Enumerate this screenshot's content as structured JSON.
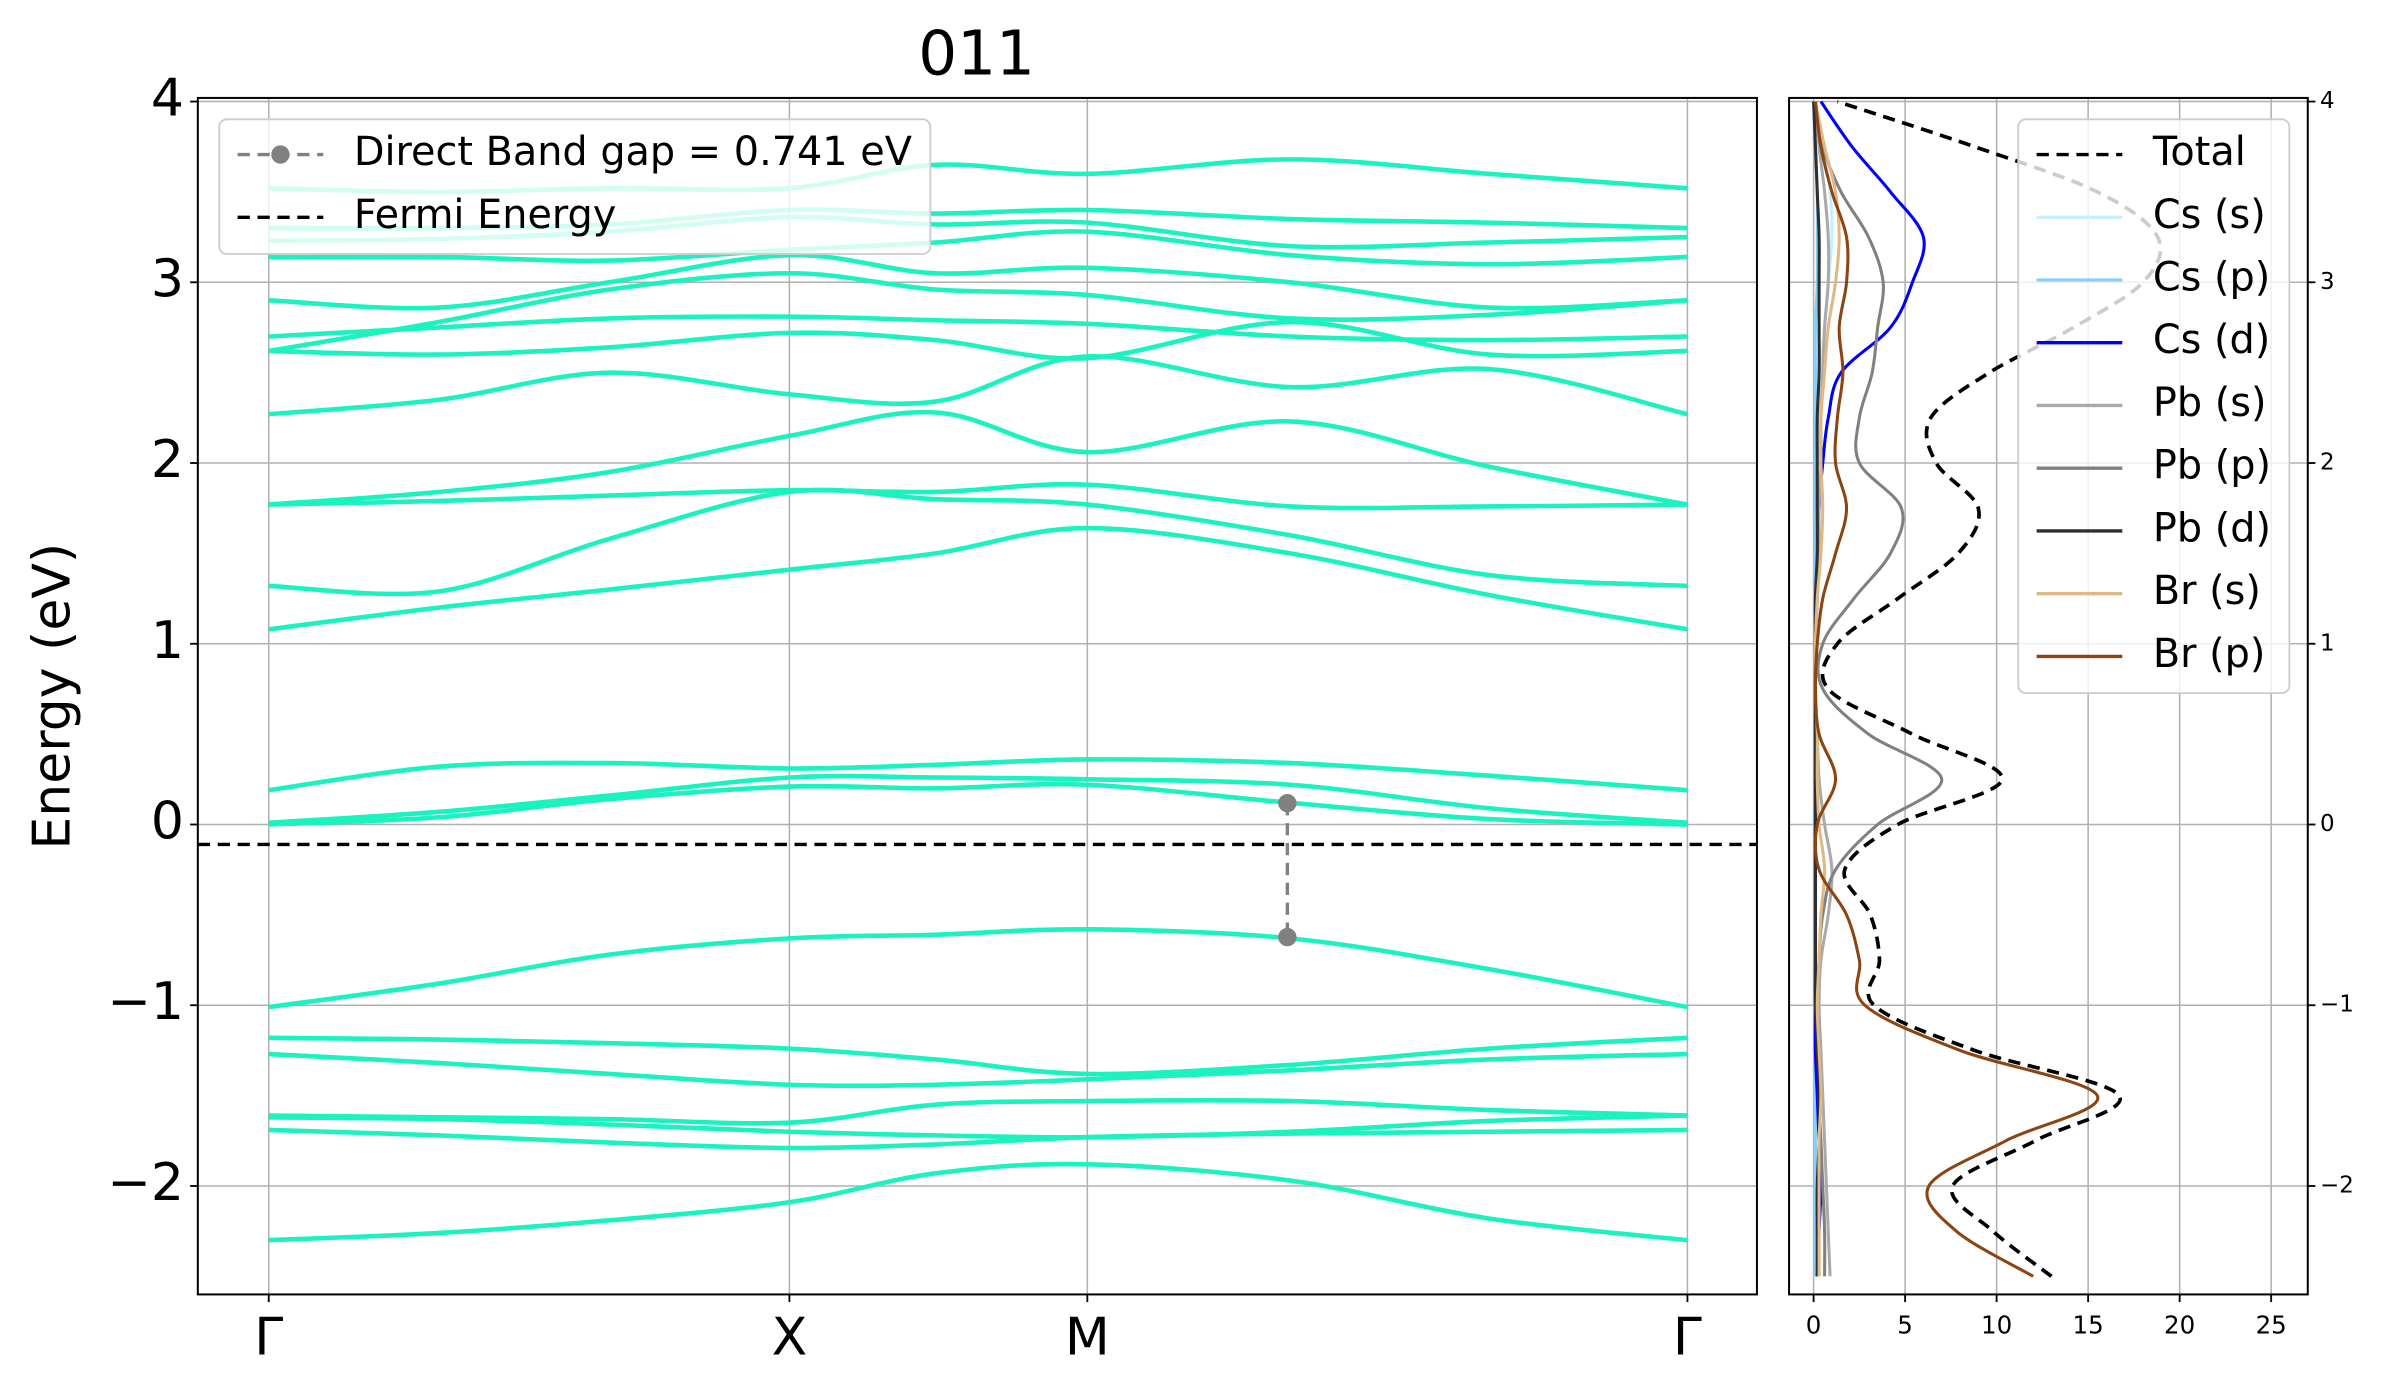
{
  "chart_data": [
    {
      "type": "line",
      "title": "011",
      "y_label": "Energy (eV)",
      "x": [
        0,
        0.12,
        0.24,
        0.367,
        0.47,
        0.577,
        0.72,
        0.86,
        1.0
      ],
      "xlim": [
        -0.05,
        1.049
      ],
      "xticks": [
        {
          "value": 0,
          "label": "Γ"
        },
        {
          "value": 0.367,
          "label": "X"
        },
        {
          "value": 0.577,
          "label": "M"
        },
        {
          "value": 1.0,
          "label": "Γ"
        }
      ],
      "ylim": [
        -2.6,
        4.02
      ],
      "yticks": [
        {
          "value": -2,
          "label": "−2"
        },
        {
          "value": -1,
          "label": "−1"
        },
        0,
        1,
        2,
        3,
        4
      ],
      "grid": true,
      "legend": "upper left",
      "band_color": "#1af2c0",
      "bands": [
        [
          -2.3,
          -2.26,
          -2.19,
          -2.09,
          -1.93,
          -1.88,
          -1.97,
          -2.18,
          -2.3
        ],
        [
          -1.69,
          -1.72,
          -1.76,
          -1.79,
          -1.77,
          -1.73,
          -1.71,
          -1.7,
          -1.69
        ],
        [
          -1.62,
          -1.63,
          -1.66,
          -1.7,
          -1.72,
          -1.73,
          -1.7,
          -1.64,
          -1.61
        ],
        [
          -1.61,
          -1.62,
          -1.63,
          -1.65,
          -1.55,
          -1.53,
          -1.53,
          -1.58,
          -1.61
        ],
        [
          -1.27,
          -1.32,
          -1.38,
          -1.44,
          -1.44,
          -1.41,
          -1.36,
          -1.3,
          -1.27
        ],
        [
          -1.18,
          -1.19,
          -1.21,
          -1.24,
          -1.3,
          -1.38,
          -1.33,
          -1.24,
          -1.18
        ],
        [
          -1.01,
          -0.88,
          -0.72,
          -0.63,
          -0.61,
          -0.58,
          -0.63,
          -0.8,
          -1.01
        ],
        [
          0.0,
          0.04,
          0.14,
          0.21,
          0.2,
          0.22,
          0.12,
          0.03,
          0.0
        ],
        [
          0.01,
          0.07,
          0.16,
          0.26,
          0.26,
          0.25,
          0.22,
          0.09,
          0.01
        ],
        [
          0.19,
          0.32,
          0.34,
          0.31,
          0.33,
          0.36,
          0.34,
          0.27,
          0.19
        ],
        [
          1.08,
          1.2,
          1.3,
          1.41,
          1.5,
          1.64,
          1.5,
          1.27,
          1.08
        ],
        [
          1.32,
          1.29,
          1.58,
          1.84,
          1.8,
          1.77,
          1.6,
          1.38,
          1.32
        ],
        [
          1.77,
          1.79,
          1.82,
          1.85,
          1.84,
          1.88,
          1.76,
          1.76,
          1.77
        ],
        [
          1.77,
          1.84,
          1.95,
          2.15,
          2.28,
          2.06,
          2.23,
          1.98,
          1.77
        ],
        [
          2.27,
          2.35,
          2.5,
          2.38,
          2.34,
          2.59,
          2.42,
          2.52,
          2.27
        ],
        [
          2.62,
          2.6,
          2.64,
          2.72,
          2.68,
          2.58,
          2.78,
          2.6,
          2.62
        ],
        [
          2.7,
          2.75,
          2.8,
          2.81,
          2.79,
          2.77,
          2.7,
          2.68,
          2.7
        ],
        [
          2.62,
          2.78,
          2.96,
          3.05,
          2.96,
          2.93,
          2.8,
          2.82,
          2.9
        ],
        [
          2.9,
          2.86,
          3.0,
          3.15,
          3.05,
          3.08,
          3.0,
          2.86,
          2.9
        ],
        [
          3.14,
          3.14,
          3.12,
          3.18,
          3.22,
          3.28,
          3.15,
          3.1,
          3.14
        ],
        [
          3.23,
          3.24,
          3.28,
          3.36,
          3.32,
          3.33,
          3.2,
          3.22,
          3.25
        ],
        [
          3.3,
          3.3,
          3.32,
          3.4,
          3.38,
          3.4,
          3.35,
          3.33,
          3.3
        ],
        [
          3.52,
          3.5,
          3.52,
          3.52,
          3.65,
          3.6,
          3.68,
          3.6,
          3.52
        ]
      ],
      "band_gap": {
        "name": "Direct Band gap = 0.741 eV",
        "color": "#808080",
        "x": [
          0.718,
          0.718
        ],
        "values": [
          0.118,
          -0.623
        ]
      },
      "fermi": {
        "name": "Fermi Energy",
        "color": "#000000",
        "value": -0.11
      }
    },
    {
      "type": "line",
      "orientation": "horizontal",
      "y": [
        -2.5,
        -2.25,
        -2.0,
        -1.75,
        -1.5,
        -1.25,
        -1.0,
        -0.75,
        -0.5,
        -0.25,
        0,
        0.25,
        0.5,
        0.75,
        1.0,
        1.25,
        1.5,
        1.75,
        2.0,
        2.25,
        2.5,
        2.75,
        3.0,
        3.25,
        3.5,
        3.75,
        4.0
      ],
      "xlim": [
        -1.34,
        27.0
      ],
      "xticks": [
        0,
        5,
        10,
        15,
        20,
        25
      ],
      "ylim": [
        -2.6,
        4.02
      ],
      "yticks": [
        {
          "value": -2,
          "label": "−2"
        },
        {
          "value": -1,
          "label": "−1"
        },
        0,
        1,
        2,
        3,
        4
      ],
      "grid": true,
      "legend": "upper right",
      "series": [
        {
          "name": "Total",
          "color": "#000000",
          "linestyle": "dashed",
          "values": [
            13.0,
            9.8,
            7.6,
            12.1,
            16.7,
            8.8,
            3.3,
            3.6,
            3.1,
            1.7,
            4.6,
            10.3,
            5.4,
            0.8,
            1.3,
            4.6,
            7.9,
            9.0,
            6.7,
            6.4,
            9.6,
            14.2,
            18.0,
            18.8,
            15.5,
            8.8,
            1.3
          ]
        },
        {
          "name": "Cs (s)",
          "color": "#c6f1fb",
          "values": [
            0.1,
            0.1,
            0.1,
            0.1,
            0.1,
            0.1,
            0.1,
            0.1,
            0.1,
            0.1,
            0.1,
            0.1,
            0.1,
            0.1,
            0.1,
            0.1,
            0.1,
            0.2,
            0.2,
            0.3,
            0.4,
            0.6,
            0.8,
            1.0,
            0.9,
            0.5,
            0.1
          ]
        },
        {
          "name": "Cs (p)",
          "color": "#87cefa",
          "values": [
            0.1,
            0.1,
            0.1,
            0.1,
            0.1,
            0.1,
            0.1,
            0.1,
            0.1,
            0.1,
            0.1,
            0.1,
            0.1,
            0.1,
            0.1,
            0.1,
            0.1,
            0.1,
            0.1,
            0.1,
            0.1,
            0.1,
            0.2,
            0.2,
            0.2,
            0.1,
            0.0
          ]
        },
        {
          "name": "Cs (d)",
          "color": "#0000ff",
          "values": [
            0.2,
            0.3,
            0.4,
            0.3,
            0.2,
            0.1,
            0.1,
            0.1,
            0.1,
            0.1,
            0.1,
            0.1,
            0.1,
            0.1,
            0.1,
            0.2,
            0.3,
            0.3,
            0.5,
            0.8,
            1.5,
            4.2,
            5.4,
            6.0,
            4.2,
            2.1,
            0.4
          ]
        },
        {
          "name": "Pb (s)",
          "color": "#a9a9a9",
          "values": [
            0.9,
            0.8,
            0.7,
            0.6,
            0.5,
            0.4,
            0.3,
            0.4,
            0.8,
            1.0,
            0.6,
            0.3,
            0.2,
            0.1,
            0.1,
            0.2,
            0.3,
            0.3,
            0.4,
            0.4,
            0.5,
            0.6,
            0.8,
            0.8,
            0.6,
            0.3,
            0.1
          ]
        },
        {
          "name": "Pb (p)",
          "color": "#808080",
          "values": [
            0.6,
            0.6,
            0.5,
            0.4,
            0.3,
            0.3,
            0.2,
            0.3,
            0.5,
            1.2,
            3.5,
            7.0,
            3.0,
            0.5,
            0.5,
            2.2,
            4.2,
            4.8,
            2.5,
            2.5,
            3.2,
            3.5,
            3.8,
            3.0,
            1.5,
            0.5,
            0.1
          ]
        },
        {
          "name": "Pb (d)",
          "color": "#2f2f2f",
          "values": [
            0.2,
            0.2,
            0.2,
            0.3,
            0.3,
            0.2,
            0.1,
            0.1,
            0.1,
            0.1,
            0.1,
            0.1,
            0.1,
            0.1,
            0.1,
            0.1,
            0.2,
            0.2,
            0.2,
            0.2,
            0.3,
            0.3,
            0.3,
            0.3,
            0.2,
            0.1,
            0.0
          ]
        },
        {
          "name": "Br (s)",
          "color": "#deb887",
          "values": [
            0.3,
            0.3,
            0.3,
            0.3,
            0.4,
            0.3,
            0.2,
            0.3,
            0.4,
            0.6,
            0.3,
            0.2,
            0.2,
            0.1,
            0.1,
            0.2,
            0.4,
            0.5,
            0.4,
            0.4,
            0.6,
            0.8,
            1.2,
            1.4,
            1.2,
            0.6,
            0.1
          ]
        },
        {
          "name": "Br (p)",
          "color": "#8b4513",
          "values": [
            12.0,
            7.8,
            6.3,
            10.5,
            15.5,
            8.0,
            2.8,
            2.5,
            1.8,
            0.3,
            0.2,
            1.2,
            0.3,
            0.1,
            0.2,
            0.5,
            1.2,
            1.8,
            1.2,
            1.3,
            1.6,
            1.4,
            1.8,
            1.8,
            1.0,
            0.4,
            0.1
          ]
        }
      ]
    }
  ]
}
